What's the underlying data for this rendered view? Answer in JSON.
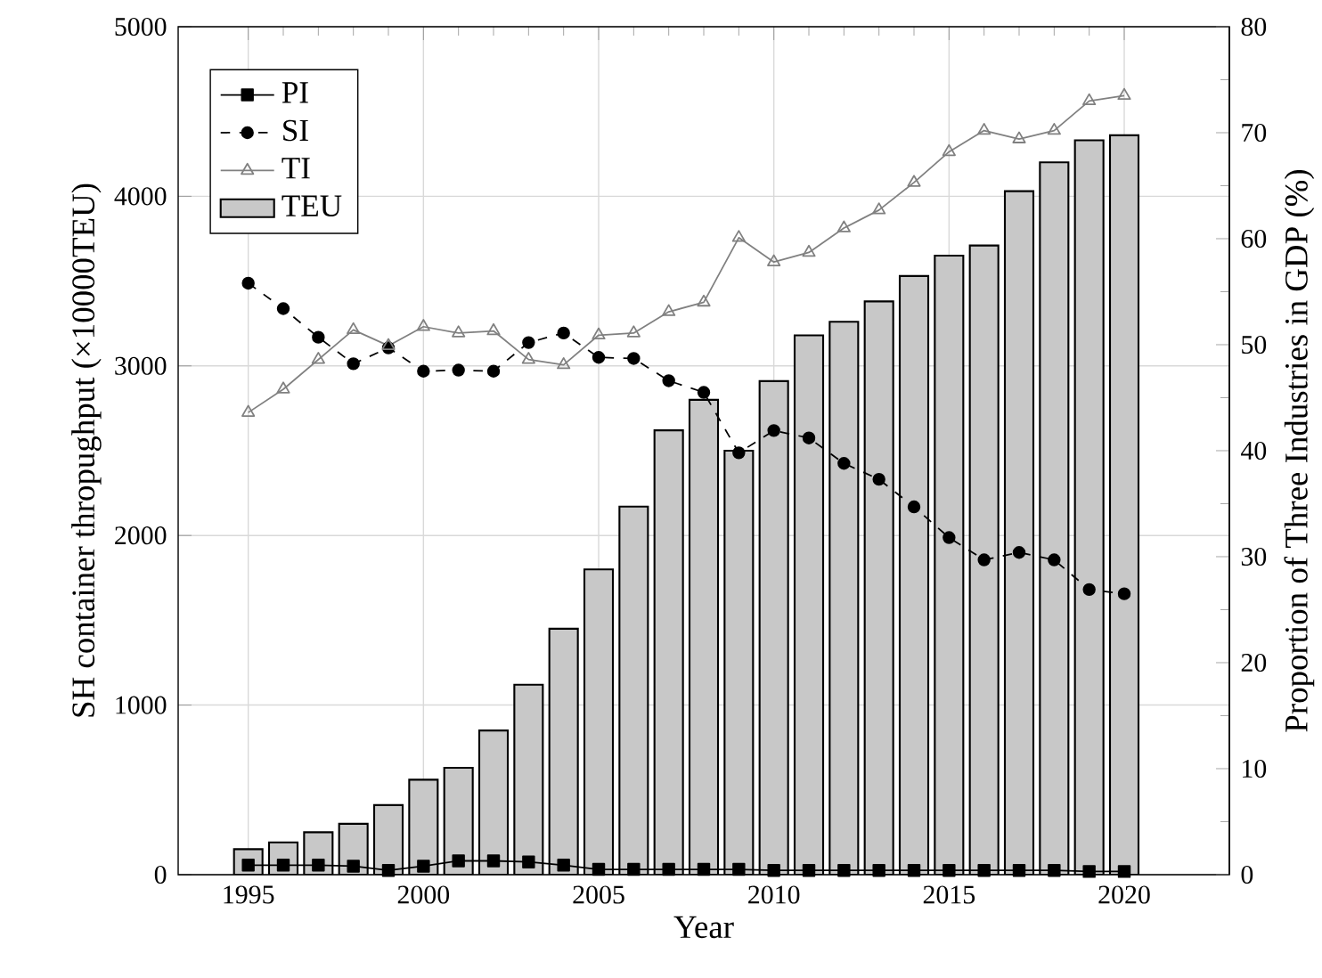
{
  "chart_data": {
    "type": "bar",
    "xlabel": "Year",
    "ylabel": "SH container thropughput (×10000TEU)",
    "y2label": "Proportion of Three Industries in GDP (%)",
    "x": [
      1995,
      1996,
      1997,
      1998,
      1999,
      2000,
      2001,
      2002,
      2003,
      2004,
      2005,
      2006,
      2007,
      2008,
      2009,
      2010,
      2011,
      2012,
      2013,
      2014,
      2015,
      2016,
      2017,
      2018,
      2019,
      2020
    ],
    "series": [
      {
        "name": "PI",
        "type": "line",
        "axis": "y2",
        "color": "#000000",
        "marker": "square",
        "line_style": "solid",
        "values": [
          0.9,
          0.9,
          0.9,
          0.8,
          0.4,
          0.8,
          1.3,
          1.3,
          1.2,
          0.9,
          0.5,
          0.5,
          0.5,
          0.5,
          0.5,
          0.4,
          0.4,
          0.4,
          0.4,
          0.4,
          0.4,
          0.4,
          0.4,
          0.4,
          0.3,
          0.3
        ]
      },
      {
        "name": "SI",
        "type": "line",
        "axis": "y2",
        "color": "#000000",
        "marker": "circle",
        "line_style": "dashed",
        "values": [
          55.8,
          53.4,
          50.7,
          48.2,
          49.7,
          47.5,
          47.6,
          47.5,
          50.2,
          51.1,
          48.8,
          48.7,
          46.6,
          45.5,
          39.8,
          41.9,
          41.2,
          38.8,
          37.3,
          34.7,
          31.8,
          29.7,
          30.4,
          29.7,
          26.9,
          26.5
        ]
      },
      {
        "name": "TI",
        "type": "line",
        "axis": "y2",
        "color": "#808080",
        "marker": "triangle",
        "line_style": "solid",
        "values": [
          43.6,
          45.8,
          48.6,
          51.4,
          49.9,
          51.7,
          51.1,
          51.3,
          48.6,
          48.1,
          50.9,
          51.1,
          53.1,
          54.0,
          60.1,
          57.8,
          58.7,
          61.0,
          62.7,
          65.3,
          68.2,
          70.2,
          69.4,
          70.2,
          73.0,
          73.5
        ]
      },
      {
        "name": "TEU",
        "axis": "y",
        "color": "#c8c8c8",
        "values": [
          150,
          190,
          250,
          300,
          410,
          560,
          630,
          850,
          1120,
          1450,
          1800,
          2170,
          2620,
          2800,
          2500,
          2910,
          3180,
          3260,
          3380,
          3530,
          3650,
          3710,
          4030,
          4200,
          4330,
          4360
        ]
      }
    ],
    "xlim": [
      1993,
      2023
    ],
    "xticks": [
      1995,
      2000,
      2005,
      2010,
      2015,
      2020
    ],
    "ylim": [
      0,
      5000
    ],
    "yticks": [
      0,
      1000,
      2000,
      3000,
      4000,
      5000
    ],
    "y2lim": [
      0,
      80
    ],
    "y2ticks": [
      0,
      10,
      20,
      30,
      40,
      50,
      60,
      70,
      80
    ],
    "grid": true,
    "legend": "top left"
  }
}
